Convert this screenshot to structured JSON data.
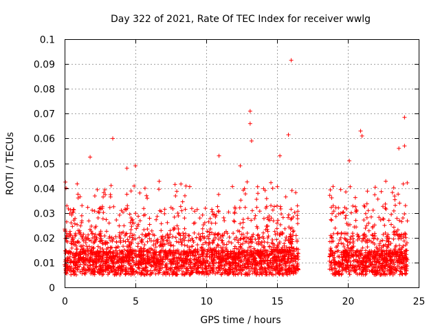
{
  "chart_data": {
    "type": "scatter",
    "title": "Day 322 of 2021, Rate Of TEC Index for receiver wwlg",
    "xlabel": "GPS time / hours",
    "ylabel": "ROTI / TECUs",
    "xlim": [
      0,
      25
    ],
    "ylim": [
      0,
      0.1
    ],
    "xticks": [
      "0",
      "5",
      "10",
      "15",
      "20",
      "25"
    ],
    "yticks": [
      "0",
      "0.01",
      "0.02",
      "0.03",
      "0.04",
      "0.05",
      "0.06",
      "0.07",
      "0.08",
      "0.09",
      "0.1"
    ],
    "grid": true,
    "marker": "+",
    "color": "#ff0000",
    "data_segments": [
      {
        "x_start": 0.0,
        "x_end": 16.5
      },
      {
        "x_start": 18.7,
        "x_end": 24.2
      }
    ],
    "notable_points": [
      {
        "x": 0.1,
        "y": 0.04
      },
      {
        "x": 1.8,
        "y": 0.0525
      },
      {
        "x": 3.4,
        "y": 0.06
      },
      {
        "x": 4.4,
        "y": 0.048
      },
      {
        "x": 5.0,
        "y": 0.049
      },
      {
        "x": 10.9,
        "y": 0.053
      },
      {
        "x": 12.4,
        "y": 0.049
      },
      {
        "x": 13.1,
        "y": 0.071
      },
      {
        "x": 13.1,
        "y": 0.066
      },
      {
        "x": 13.2,
        "y": 0.059
      },
      {
        "x": 15.2,
        "y": 0.053
      },
      {
        "x": 15.8,
        "y": 0.0615
      },
      {
        "x": 16.0,
        "y": 0.0915
      },
      {
        "x": 20.1,
        "y": 0.051
      },
      {
        "x": 20.9,
        "y": 0.063
      },
      {
        "x": 21.0,
        "y": 0.061
      },
      {
        "x": 23.6,
        "y": 0.056
      },
      {
        "x": 24.0,
        "y": 0.0685
      },
      {
        "x": 24.0,
        "y": 0.057
      }
    ]
  }
}
